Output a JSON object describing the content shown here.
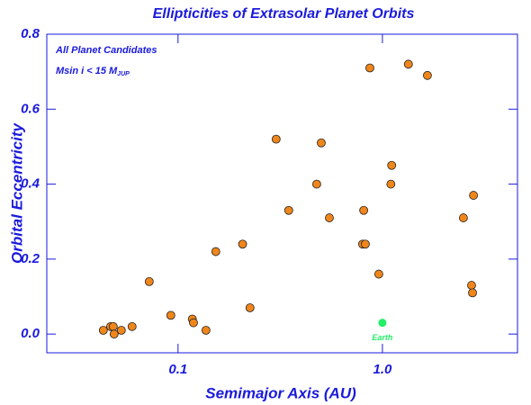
{
  "chart_data": {
    "type": "scatter",
    "title": "Ellipticities of Extrasolar Planet Orbits",
    "x_label": "Semimajor Axis  (AU)",
    "y_label": "Orbital Eccentricity",
    "annotations": [
      "All Planet Candidates",
      "Msin i < 15 M",
      "JUP"
    ],
    "x_log": true,
    "xlim": [
      0.0228,
      4.58
    ],
    "ylim": [
      -0.05,
      0.8
    ],
    "xticks": [
      0.1,
      {
        "value": 1,
        "label": "1.0"
      }
    ],
    "yticks": [
      {
        "value": 0,
        "label": "0.0"
      },
      {
        "value": 0.2,
        "label": "0.2"
      },
      {
        "value": 0.4,
        "label": "0.4"
      },
      {
        "value": 0.6,
        "label": "0.6"
      },
      {
        "value": 0.8,
        "label": "0.8"
      }
    ],
    "color": "#f0861a",
    "x": [
      0.0431,
      0.0468,
      0.0482,
      0.0487,
      0.0528,
      0.0596,
      0.0723,
      0.0922,
      0.1175,
      0.119,
      0.137,
      0.153,
      0.207,
      0.225,
      0.302,
      0.348,
      0.477,
      0.502,
      0.55,
      0.8,
      0.825,
      0.81,
      0.868,
      0.96,
      1.1,
      1.11,
      1.34,
      1.66,
      2.73,
      2.76,
      2.49,
      2.79
    ],
    "values": [
      0.01,
      0.02,
      0.02,
      0.0,
      0.01,
      0.02,
      0.14,
      0.05,
      0.04,
      0.03,
      0.01,
      0.22,
      0.24,
      0.07,
      0.52,
      0.33,
      0.4,
      0.51,
      0.31,
      0.24,
      0.24,
      0.33,
      0.71,
      0.16,
      0.4,
      0.45,
      0.72,
      0.69,
      0.13,
      0.11,
      0.31,
      0.37
    ],
    "earth": {
      "x": 1.0,
      "y": 0.03,
      "label": "Earth",
      "color": "#22ee66"
    }
  }
}
